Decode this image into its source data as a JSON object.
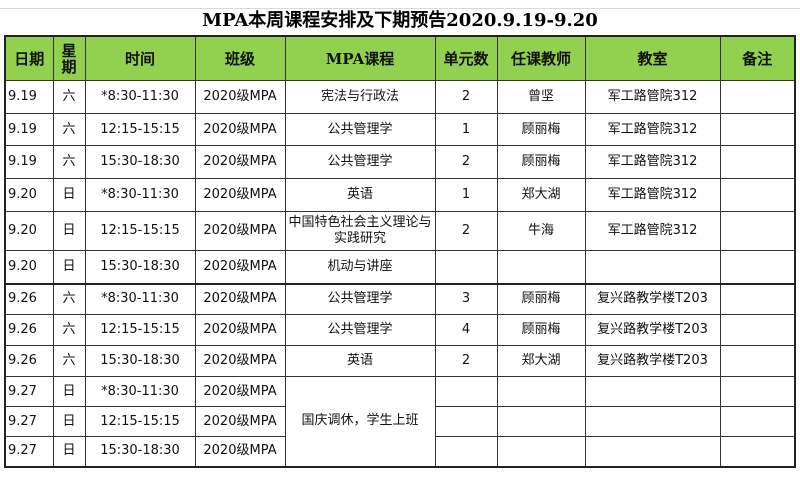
{
  "title": "MPA本周课程安排及下期预告2020.9.19-9.20",
  "header_color": "#92D050",
  "columns": [
    "日期",
    "星期",
    "时间",
    "班级",
    "MPA课程",
    "单元数",
    "任课教师",
    "教室",
    "备注"
  ],
  "rows": [
    [
      "9.19",
      "六",
      "*8:30-11:30",
      "2020级MPA",
      "宪法与行政法",
      "2",
      "曾坚",
      "军工路管院312",
      ""
    ],
    [
      "9.19",
      "六",
      "12:15-15:15",
      "2020级MPA",
      "公共管理学",
      "1",
      "顾丽梅",
      "军工路管院312",
      ""
    ],
    [
      "9.19",
      "六",
      "15:30-18:30",
      "2020级MPA",
      "公共管理学",
      "2",
      "顾丽梅",
      "军工路管院312",
      ""
    ],
    [
      "9.20",
      "日",
      "*8:30-11:30",
      "2020级MPA",
      "英语",
      "1",
      "郑大湖",
      "军工路管院312",
      ""
    ],
    [
      "9.20",
      "日",
      "12:15-15:15",
      "2020级MPA",
      "中国特色社会主义理论与实践研究",
      "2",
      "牛海",
      "军工路管院312",
      ""
    ],
    [
      "9.20",
      "日",
      "15:30-18:30",
      "2020级MPA",
      "机动与讲座",
      "",
      "",
      "",
      ""
    ],
    [
      "9.26",
      "六",
      "*8:30-11:30",
      "2020级MPA",
      "公共管理学",
      "3",
      "顾丽梅",
      "复兴路教学楼T203",
      ""
    ],
    [
      "9.26",
      "六",
      "12:15-15:15",
      "2020级MPA",
      "公共管理学",
      "4",
      "顾丽梅",
      "复兴路教学楼T203",
      ""
    ],
    [
      "9.26",
      "六",
      "15:30-18:30",
      "2020级MPA",
      "英语",
      "2",
      "郑大湖",
      "复兴路教学楼T203",
      ""
    ],
    [
      "9.27",
      "日",
      "*8:30-11:30",
      "2020级MPA",
      "国庆调休，学生上班",
      "",
      "",
      "",
      ""
    ],
    [
      "9.27",
      "日",
      "12:15-15:15",
      "2020级MPA",
      null,
      "",
      "",
      "",
      ""
    ],
    [
      "9.27",
      "日",
      "15:30-18:30",
      "2020级MPA",
      null,
      "",
      "",
      "",
      ""
    ]
  ]
}
